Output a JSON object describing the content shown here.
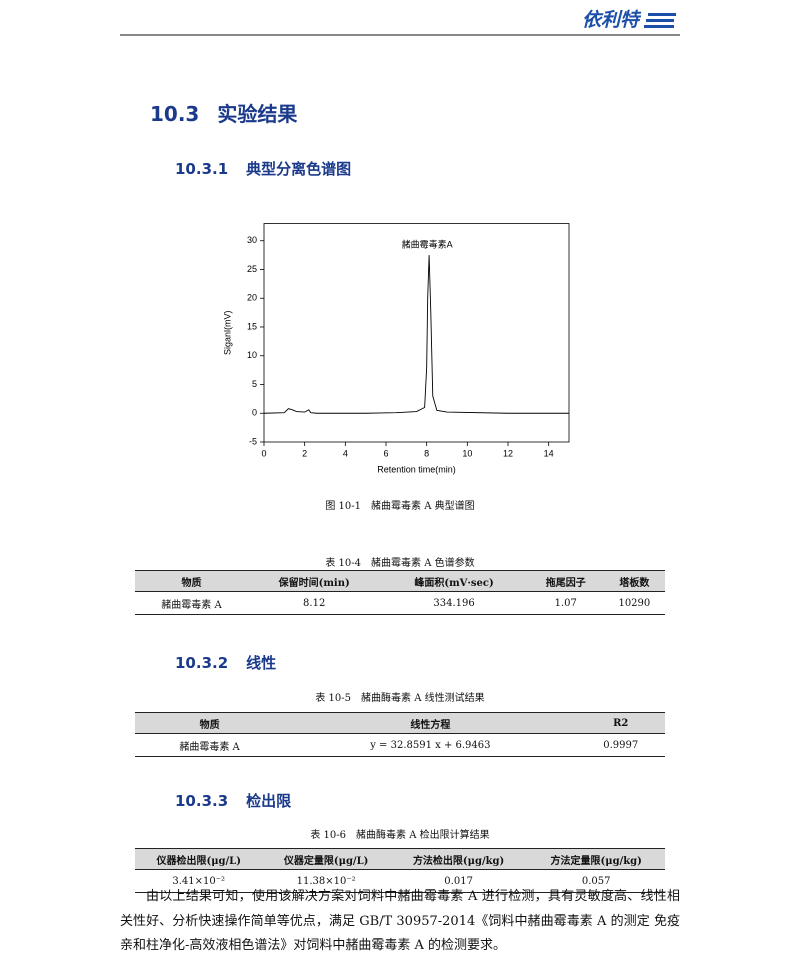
{
  "header": {
    "logo": "依利特"
  },
  "section": {
    "number": "10.3",
    "text": "实验结果"
  },
  "subsections": [
    {
      "number": "10.3.1",
      "text": "典型分离色谱图"
    },
    {
      "number": "10.3.2",
      "text": "线性"
    },
    {
      "number": "10.3.3",
      "text": "检出限"
    }
  ],
  "chart_data": {
    "type": "line",
    "caption": "图 10-1　赭曲霉毒素 A 典型谱图",
    "x_label": "Retention time(min)",
    "y_label": "Siganl(mV)",
    "annotation": "赭曲霉毒素A",
    "x": [
      0,
      1.0,
      1.2,
      1.4,
      1.6,
      2.0,
      2.2,
      2.3,
      2.6,
      5.0,
      6.5,
      7.5,
      7.9,
      8.0,
      8.05,
      8.12,
      8.2,
      8.3,
      8.5,
      9,
      12,
      15
    ],
    "values": [
      0,
      0.1,
      0.8,
      0.6,
      0.3,
      0.2,
      0.6,
      0.1,
      0,
      0,
      0.1,
      0.3,
      1,
      8,
      20,
      27.5,
      18,
      3,
      0.5,
      0.2,
      0,
      0
    ],
    "color": "#000000",
    "xlim": [
      0,
      15
    ],
    "ylim": [
      -5,
      33
    ],
    "xticks": [
      0,
      2,
      4,
      6,
      8,
      10,
      12,
      14
    ],
    "yticks": [
      -5,
      0,
      5,
      10,
      15,
      20,
      25,
      30
    ]
  },
  "tables": [
    {
      "caption": "表 10-4　赭曲霉毒素 A 色谱参数",
      "columns": [
        "物质",
        "保留时间(min)",
        "峰面积(mV·sec)",
        "拖尾因子",
        "塔板数"
      ],
      "rows": [
        [
          "赭曲霉毒素 A",
          "8.12",
          "334.196",
          "1.07",
          "10290"
        ]
      ]
    },
    {
      "caption": "表 10-5　赭曲酶毒素 A 线性测试结果",
      "columns": [
        "物质",
        "线性方程",
        "R2"
      ],
      "rows": [
        [
          "赭曲霉毒素 A",
          "y = 32.8591 x + 6.9463",
          "0.9997"
        ]
      ]
    },
    {
      "caption": "表 10-6　赭曲酶毒素 A 检出限计算结果",
      "columns": [
        "仪器检出限(μg/L)",
        "仪器定量限(μg/L)",
        "方法检出限(μg/kg)",
        "方法定量限(μg/kg)"
      ],
      "rows": [
        [
          "3.41×10⁻²",
          "11.38×10⁻²",
          "0.017",
          "0.057"
        ]
      ]
    }
  ],
  "paragraph": "由以上结果可知，使用该解决方案对饲料中赭曲霉毒素 A 进行检测，具有灵敏度高、线性相关性好、分析快速操作简单等优点，满足 GB/T 30957-2014《饲料中赭曲霉毒素 A 的测定 免疫亲和柱净化-高效液相色谱法》对饲料中赭曲霉毒素 A 的检测要求。"
}
